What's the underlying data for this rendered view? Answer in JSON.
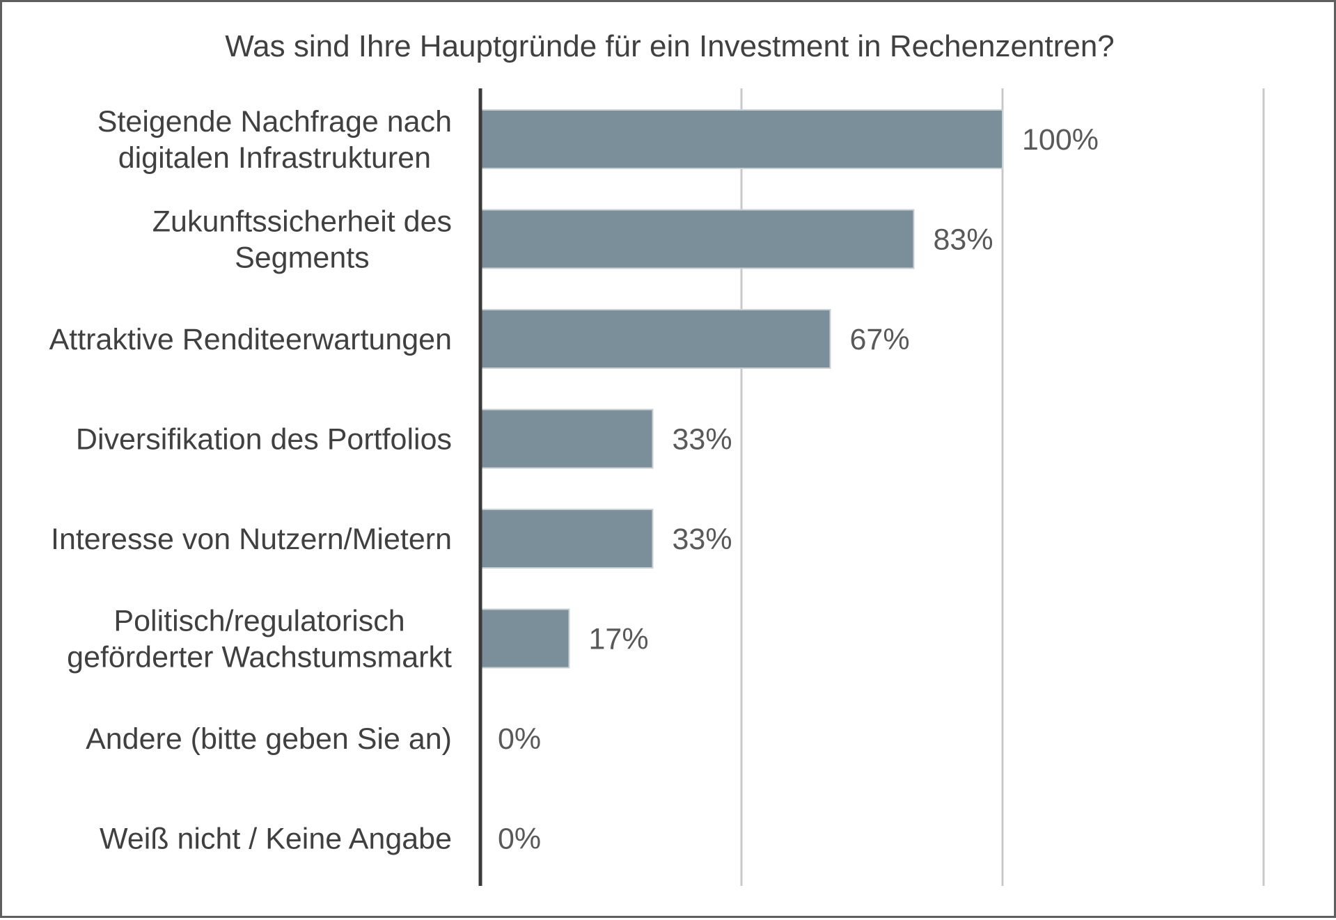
{
  "chart_data": {
    "type": "bar",
    "orientation": "horizontal",
    "title": "Was sind Ihre Hauptgründe für ein Investment in Rechenzentren?",
    "categories": [
      [
        "Steigende Nachfrage nach",
        "digitalen Infrastrukturen"
      ],
      [
        "Zukunftssicherheit des",
        "Segments"
      ],
      [
        "Attraktive Renditeerwartungen"
      ],
      [
        "Diversifikation des Portfolios"
      ],
      [
        "Interesse von Nutzern/Mietern"
      ],
      [
        "Politisch/regulatorisch",
        "geförderter Wachstumsmarkt"
      ],
      [
        "Andere (bitte geben Sie an)"
      ],
      [
        "Weiß nicht / Keine Angabe"
      ]
    ],
    "values": [
      100,
      83,
      67,
      33,
      33,
      17,
      0,
      0
    ],
    "value_labels": [
      "100%",
      "83%",
      "67%",
      "33%",
      "33%",
      "17%",
      "0%",
      "0%"
    ],
    "xlim": [
      0,
      150
    ],
    "gridlines_at": [
      50,
      100,
      150
    ],
    "grid": true,
    "legend": false,
    "colors": {
      "bar": "#7a8f9a",
      "bar_edge": "#c9d0d4",
      "axis": "#3a3a3a",
      "grid": "#c8c8c8",
      "text": "#404040",
      "value_text": "#595959",
      "frame": "#5f5f5f"
    }
  }
}
